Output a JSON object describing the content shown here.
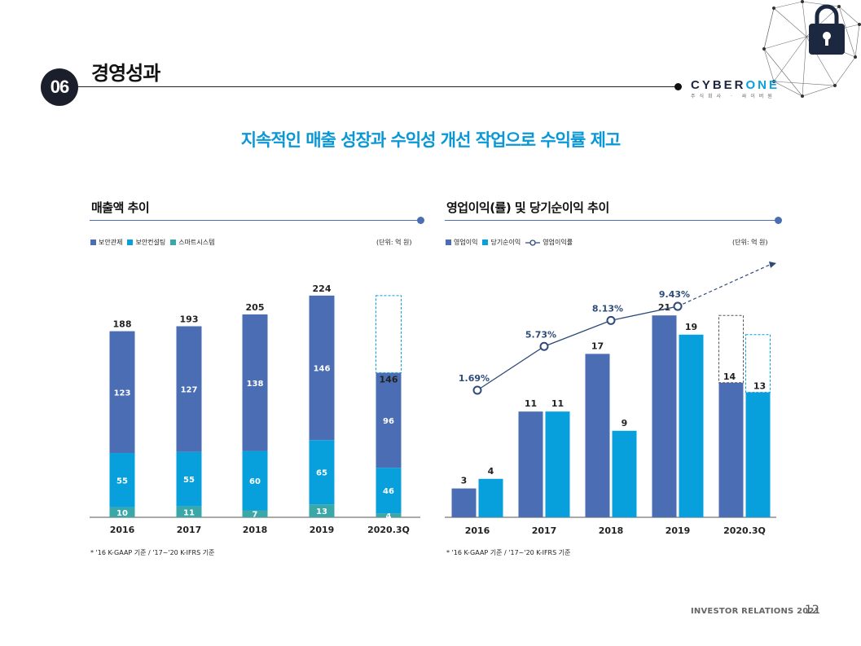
{
  "header": {
    "section_number": "06",
    "title": "경영성과",
    "logo": {
      "part1": "CYBER",
      "part2": "ONE",
      "sub": "주식회사 · 싸이버원"
    }
  },
  "headline": "지속적인 매출 성장과 수익성 개선 작업으로 수익률 제고",
  "colors": {
    "dark_blue": "#4a6db3",
    "cyan": "#08a0dc",
    "teal": "#3aa7a8",
    "title_blue": "#0a97d6"
  },
  "left_panel": {
    "title": "매출액 추이",
    "unit": "(단위: 억 원)",
    "legend": [
      "보안관제",
      "보안컨설팅",
      "스마트시스템"
    ],
    "footnote": "* '16 K-GAAP 기준 / '17~'20 K-IFRS 기준"
  },
  "right_panel": {
    "title": "영업이익(률) 및 당기순이익 추이",
    "unit": "(단위: 억 원)",
    "legend": [
      "영업이익",
      "당기순이익",
      "영업이익률"
    ],
    "footnote": "* '16 K-GAAP 기준 / '17~'20 K-IFRS 기준"
  },
  "chart_data": [
    {
      "type": "bar",
      "stacked": true,
      "title": "매출액 추이",
      "categories": [
        "2016",
        "2017",
        "2018",
        "2019",
        "2020.3Q"
      ],
      "series": [
        {
          "name": "스마트시스템",
          "values": [
            10,
            11,
            7,
            13,
            4
          ]
        },
        {
          "name": "보안컨설팅",
          "values": [
            55,
            55,
            60,
            65,
            46
          ]
        },
        {
          "name": "보안관제",
          "values": [
            123,
            127,
            138,
            146,
            96
          ]
        }
      ],
      "totals": [
        188,
        193,
        205,
        224,
        146
      ],
      "projection": {
        "category": "2020.3Q",
        "value": 224,
        "style": "dashed"
      },
      "ylim": [
        0,
        240
      ]
    },
    {
      "type": "bar",
      "title": "영업이익(률) 및 당기순이익 추이",
      "categories": [
        "2016",
        "2017",
        "2018",
        "2019",
        "2020.3Q"
      ],
      "series": [
        {
          "name": "영업이익",
          "values": [
            3,
            11,
            17,
            21,
            14
          ]
        },
        {
          "name": "당기순이익",
          "values": [
            4,
            11,
            9,
            19,
            13
          ]
        }
      ],
      "line_series": {
        "name": "영업이익률",
        "values": [
          1.69,
          5.73,
          8.13,
          9.43
        ],
        "labels": [
          "1.69%",
          "5.73%",
          "8.13%",
          "9.43%"
        ]
      },
      "projection": {
        "category": "2020.3Q",
        "values": [
          21,
          19
        ],
        "style": "dashed"
      },
      "ylim": [
        0,
        22
      ]
    }
  ],
  "footer": {
    "text": "INVESTOR RELATIONS 2021",
    "page": "12"
  }
}
